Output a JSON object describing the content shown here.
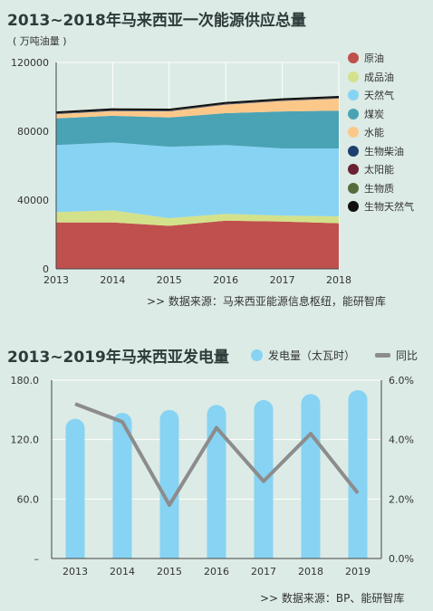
{
  "chart1": {
    "title": "2013~2018年马来西亚一次能源供应总量",
    "unit": "( 万吨油量 )",
    "source": ">>  数据来源：马来西亚能源信息枢纽，能研智库",
    "chart_data": {
      "type": "area",
      "title": "2013~2018年马来西亚一次能源供应总量",
      "ylabel": "( 万吨油量 )",
      "stacked": true,
      "x": [
        "2013",
        "2014",
        "2015",
        "2016",
        "2017",
        "2018"
      ],
      "ylim": [
        0,
        120000
      ],
      "yticks": [
        0,
        40000,
        80000,
        120000
      ],
      "legend_position": "right",
      "series": [
        {
          "name": "原油",
          "color": "#c0504d",
          "values": [
            27000,
            27000,
            25000,
            28000,
            27500,
            26500
          ]
        },
        {
          "name": "成品油",
          "color": "#d3e28a",
          "values": [
            6000,
            7000,
            4500,
            4000,
            3500,
            4000
          ]
        },
        {
          "name": "天然气",
          "color": "#87d3f3",
          "values": [
            39000,
            39500,
            41500,
            40000,
            39000,
            39500
          ]
        },
        {
          "name": "煤炭",
          "color": "#4aa3b5",
          "values": [
            15500,
            15500,
            17000,
            18500,
            21500,
            22000
          ]
        },
        {
          "name": "水能",
          "color": "#fcc88a",
          "values": [
            2500,
            2800,
            3600,
            5000,
            6100,
            7000
          ]
        },
        {
          "name": "生物柴油",
          "color": "#1f3f6e",
          "values": [
            300,
            300,
            300,
            300,
            300,
            300
          ]
        },
        {
          "name": "太阳能",
          "color": "#6a2232",
          "values": [
            100,
            100,
            100,
            100,
            100,
            100
          ]
        },
        {
          "name": "生物质",
          "color": "#586b3c",
          "values": [
            200,
            200,
            200,
            200,
            200,
            200
          ]
        },
        {
          "name": "生物天然气",
          "color": "#111111",
          "values": [
            400,
            400,
            400,
            400,
            400,
            400
          ]
        }
      ]
    }
  },
  "chart2": {
    "title": "2013~2019年马来西亚发电量",
    "source": ">>  数据来源：BP、能研智库",
    "chart_data": {
      "type": "bar",
      "title": "2013~2019年马来西亚发电量",
      "categories": [
        "2013",
        "2014",
        "2015",
        "2016",
        "2017",
        "2018",
        "2019"
      ],
      "ylim_left": [
        0,
        180
      ],
      "yticks_left": [
        "–",
        "60.0",
        "120.0",
        "180.0"
      ],
      "ylim_right": [
        0,
        6
      ],
      "yticks_right": [
        "0.0%",
        "2.0%",
        "4.0%",
        "6.0%"
      ],
      "legend_position": "top-right",
      "series": [
        {
          "name": "发电量（太瓦时）",
          "type": "bar",
          "axis": "left",
          "color": "#87d3f3",
          "values": [
            141,
            147,
            150,
            155,
            160,
            166,
            170
          ]
        },
        {
          "name": "同比",
          "type": "line",
          "axis": "right",
          "color": "#8c8c8c",
          "values": [
            5.2,
            4.6,
            1.8,
            4.4,
            2.6,
            4.2,
            2.2
          ]
        }
      ]
    }
  }
}
